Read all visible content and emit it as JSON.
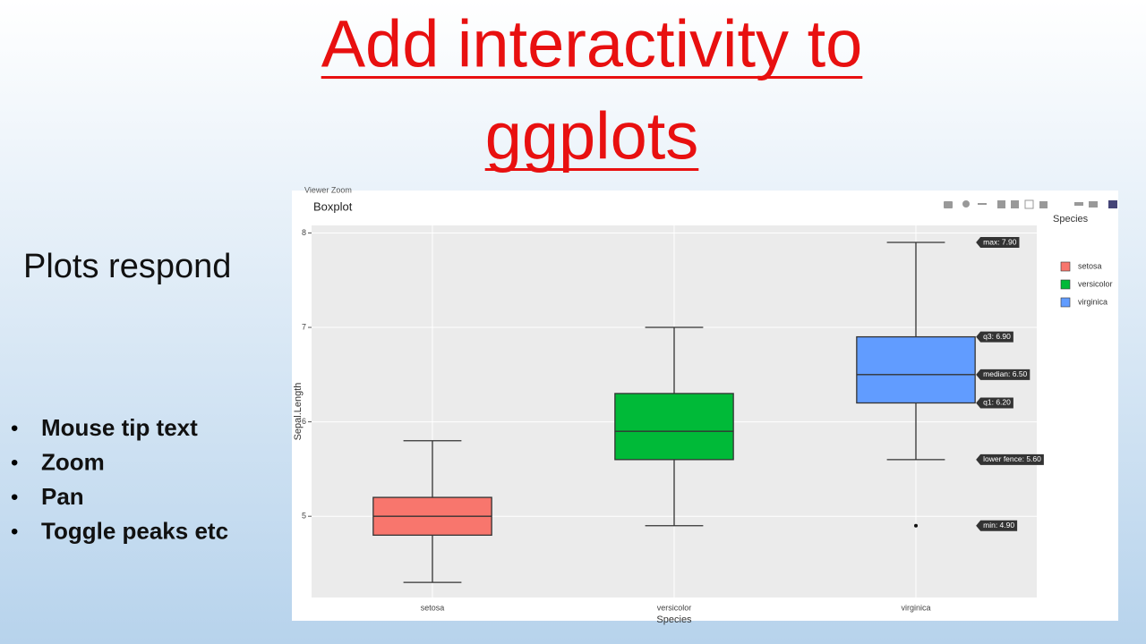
{
  "slide": {
    "title_lines": [
      "Add interactivity to",
      "ggplots"
    ],
    "subtitle": "Plots respond",
    "bullets": [
      "Mouse tip text",
      "Zoom",
      "Pan",
      "Toggle peaks etc"
    ]
  },
  "viewer": {
    "window_title": "Viewer Zoom"
  },
  "chart_data": {
    "type": "box",
    "title": "Boxplot",
    "x_label": "Species",
    "y_label": "Sepal.Length",
    "legend_title": "Species",
    "categories": [
      "setosa",
      "versicolor",
      "virginica"
    ],
    "boxes": [
      {
        "name": "setosa",
        "color": "#f8766d",
        "lower": 4.3,
        "q1": 4.8,
        "median": 5.0,
        "q3": 5.2,
        "upper": 5.8,
        "outliers": []
      },
      {
        "name": "versicolor",
        "color": "#00ba38",
        "lower": 4.9,
        "q1": 5.6,
        "median": 5.9,
        "q3": 6.3,
        "upper": 7.0,
        "outliers": []
      },
      {
        "name": "virginica",
        "color": "#619cff",
        "lower": 5.6,
        "q1": 6.2,
        "median": 6.5,
        "q3": 6.9,
        "upper": 7.9,
        "outliers": [
          4.9
        ],
        "value_labels": {
          "upper": "max: 7.90",
          "q3": "q3: 6.90",
          "median": "median: 6.50",
          "q1": "q1: 6.20",
          "lower": "lower fence: 5.60",
          "outliers": [
            "min: 4.90"
          ]
        }
      }
    ],
    "ylim": [
      4.14,
      8.08
    ],
    "yticks": [
      5,
      6,
      7,
      8
    ],
    "grid": true
  }
}
